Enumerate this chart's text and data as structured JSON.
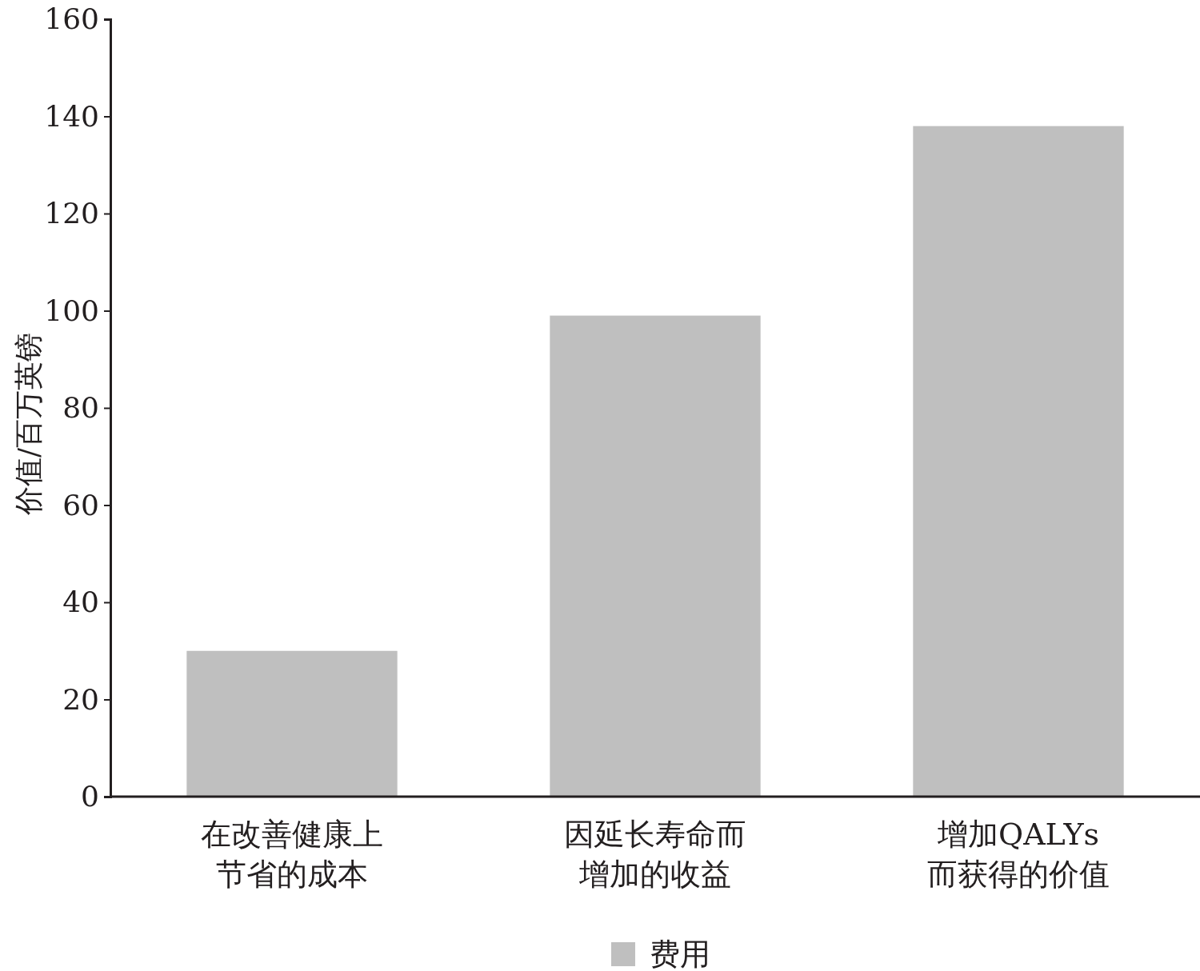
{
  "chart_data": {
    "type": "bar",
    "ylabel": "价值/百万英镑",
    "categories": [
      "在改善健康上节省的成本",
      "因延长寿命而增加的收益",
      "增加QALYs而获得的价值"
    ],
    "series": [
      {
        "name": "费用",
        "color": "#bfbfbf",
        "values": [
          30,
          99,
          138
        ]
      }
    ],
    "ylim": [
      0,
      160
    ],
    "yticks": [
      0,
      20,
      40,
      60,
      80,
      100,
      120,
      140,
      160
    ],
    "grid": false,
    "legend": "bottom"
  }
}
